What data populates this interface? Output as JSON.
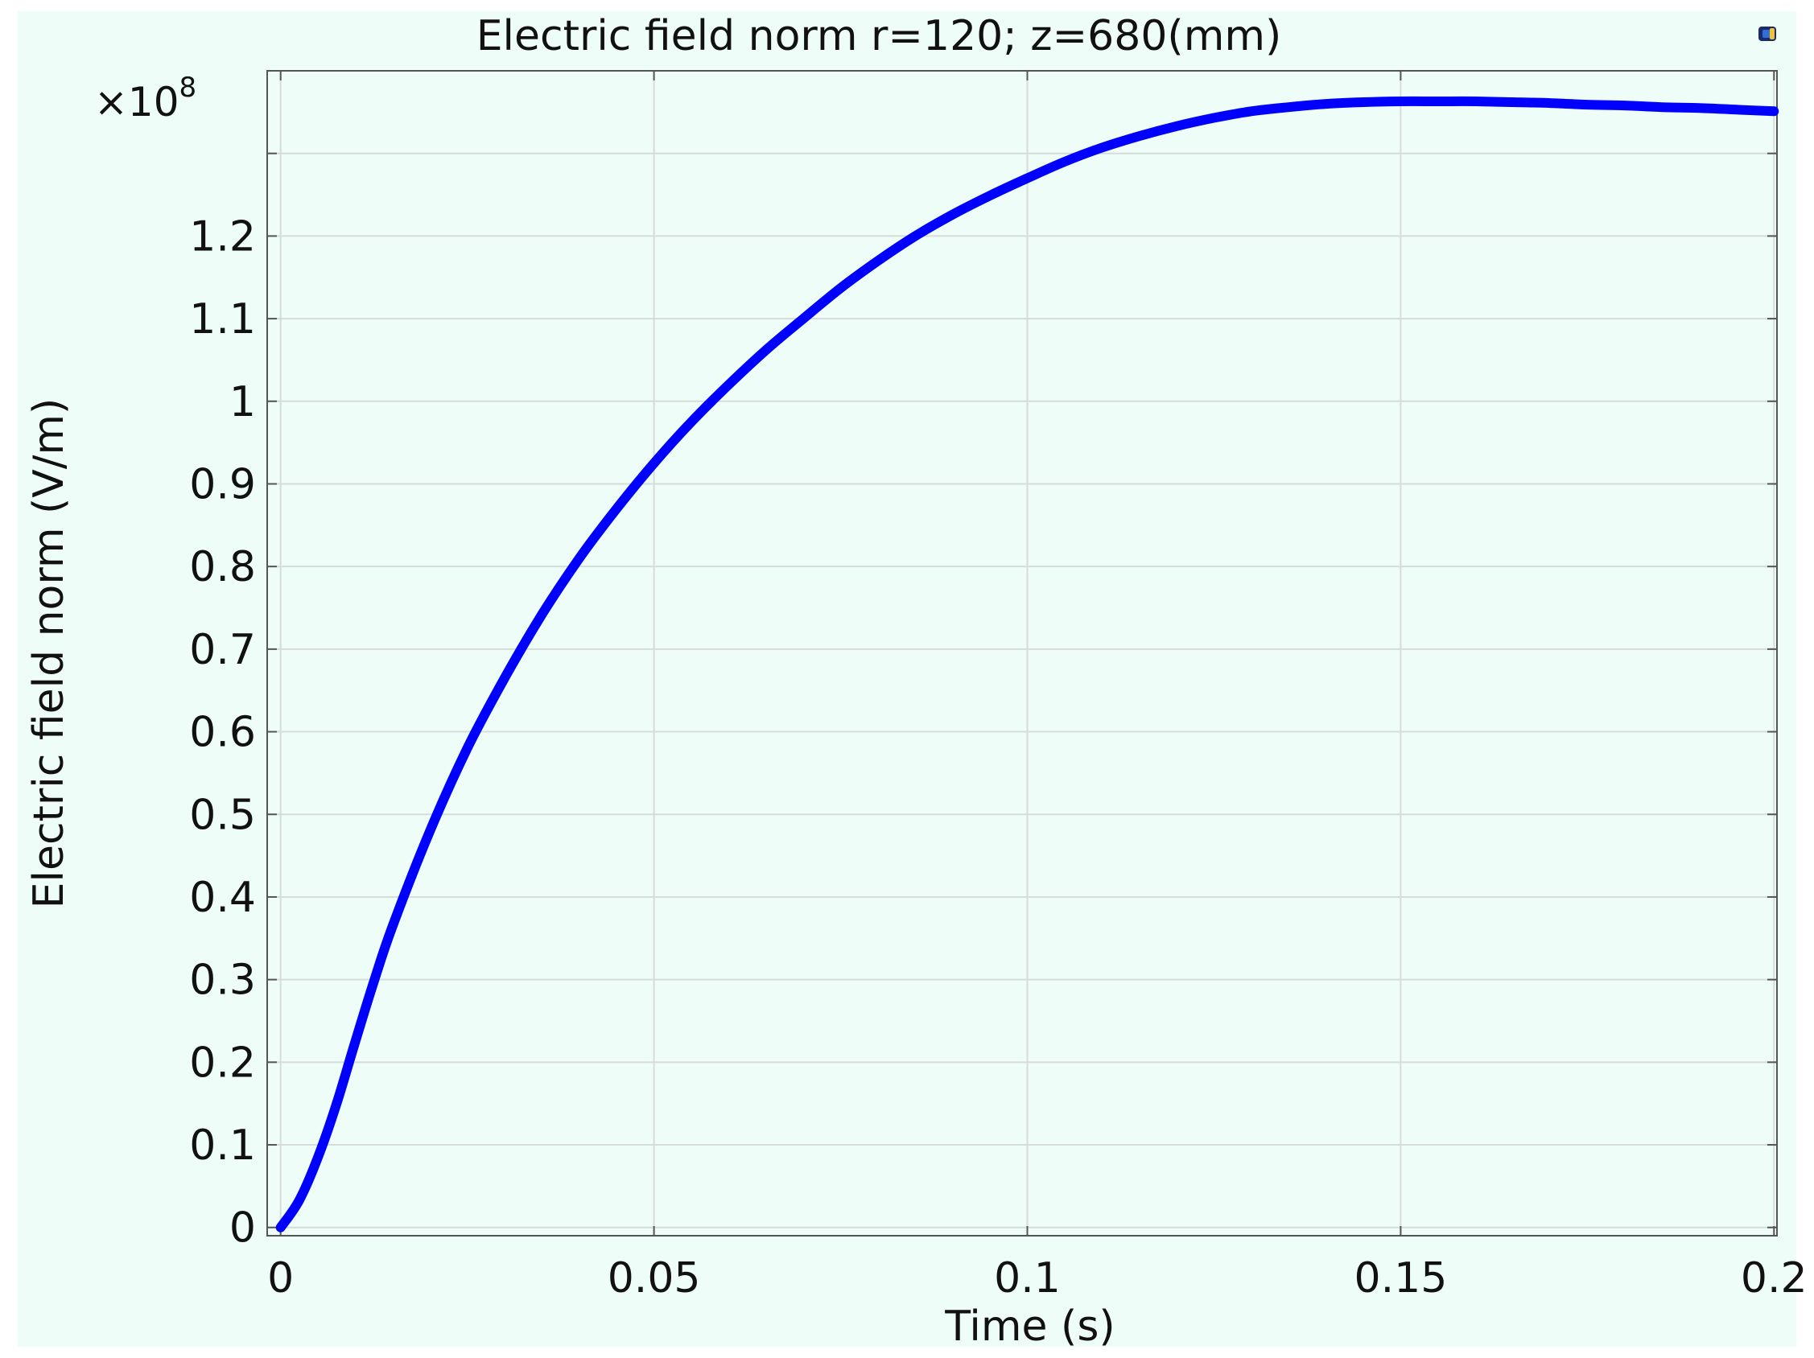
{
  "chart_data": {
    "type": "line",
    "title": "Electric field norm r=120; z=680(mm)",
    "xlabel": "Time (s)",
    "ylabel": "Electric field norm (V/m)",
    "y_multiplier": "×10",
    "y_multiplier_exponent": "8",
    "xlim": [
      -0.0018,
      0.2004
    ],
    "ylim": [
      -0.01,
      1.4
    ],
    "x_ticks": [
      0,
      0.05,
      0.1,
      0.15,
      0.2
    ],
    "x_tick_labels": [
      "0",
      "0.05",
      "0.1",
      "0.15",
      "0.2"
    ],
    "y_ticks": [
      0,
      0.1,
      0.2,
      0.3,
      0.4,
      0.5,
      0.6,
      0.7,
      0.8,
      0.9,
      1,
      1.1,
      1.2
    ],
    "y_tick_labels": [
      "0",
      "0.1",
      "0.2",
      "0.3",
      "0.4",
      "0.5",
      "0.6",
      "0.7",
      "0.8",
      "0.9",
      "1",
      "1.1",
      "1.2"
    ],
    "extra_gridlines_y": [
      1.3
    ],
    "grid": true,
    "series": [
      {
        "color": "#0000ff",
        "x": [
          0,
          0.0025,
          0.005,
          0.0075,
          0.01,
          0.0125,
          0.015,
          0.02,
          0.025,
          0.03,
          0.035,
          0.04,
          0.045,
          0.05,
          0.055,
          0.06,
          0.065,
          0.07,
          0.075,
          0.08,
          0.085,
          0.09,
          0.095,
          0.1,
          0.105,
          0.11,
          0.115,
          0.12,
          0.125,
          0.13,
          0.135,
          0.14,
          0.145,
          0.15,
          0.155,
          0.16,
          0.165,
          0.17,
          0.175,
          0.18,
          0.185,
          0.19,
          0.195,
          0.2
        ],
        "y": [
          0,
          0.033,
          0.085,
          0.15,
          0.225,
          0.298,
          0.365,
          0.48,
          0.58,
          0.665,
          0.742,
          0.81,
          0.87,
          0.925,
          0.975,
          1.02,
          1.062,
          1.1,
          1.137,
          1.17,
          1.2,
          1.226,
          1.249,
          1.27,
          1.29,
          1.307,
          1.321,
          1.333,
          1.343,
          1.351,
          1.356,
          1.36,
          1.362,
          1.363,
          1.363,
          1.363,
          1.362,
          1.361,
          1.359,
          1.358,
          1.356,
          1.355,
          1.353,
          1.351
        ]
      }
    ]
  },
  "toolbar": {
    "icon": "cube-icon",
    "icon_colors": [
      "#2f6fd6",
      "#f2c230",
      "#1a2a6c"
    ]
  }
}
